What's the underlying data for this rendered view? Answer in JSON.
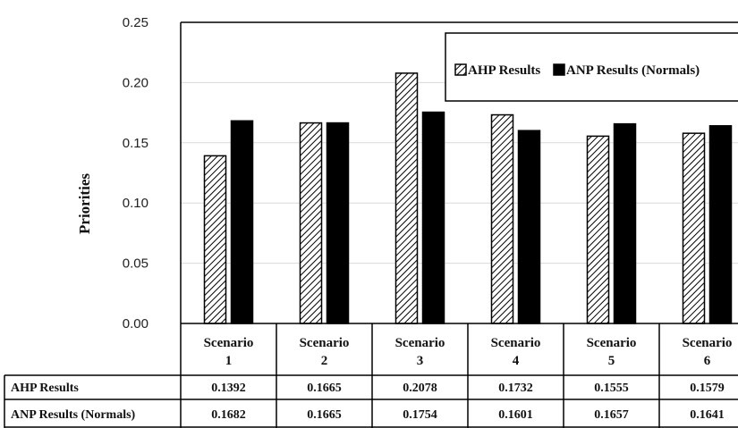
{
  "chart_data": {
    "type": "bar",
    "title": "",
    "xlabel": "",
    "ylabel": "Priorities",
    "ylim": [
      0,
      0.25
    ],
    "yticks": [
      "0.00",
      "0.05",
      "0.10",
      "0.15",
      "0.20",
      "0.25"
    ],
    "categories": [
      [
        "Scenario",
        "1"
      ],
      [
        "Scenario",
        "2"
      ],
      [
        "Scenario",
        "3"
      ],
      [
        "Scenario",
        "4"
      ],
      [
        "Scenario",
        "5"
      ],
      [
        "Scenario",
        "6"
      ]
    ],
    "grid": true,
    "legend_position": "top-right",
    "series": [
      {
        "name": "AHP Results",
        "pattern": "hatched",
        "color": "#000000",
        "values": [
          0.1392,
          0.1665,
          0.2078,
          0.1732,
          0.1555,
          0.1579
        ],
        "table_values": [
          "0.1392",
          "0.1665",
          "0.2078",
          "0.1732",
          "0.1555",
          "0.1579"
        ]
      },
      {
        "name": "ANP Results (Normals)",
        "pattern": "solid",
        "color": "#000000",
        "values": [
          0.1682,
          0.1665,
          0.1754,
          0.1601,
          0.1657,
          0.1641
        ],
        "table_values": [
          "0.1682",
          "0.1665",
          "0.1754",
          "0.1601",
          "0.1657",
          "0.1641"
        ]
      }
    ]
  }
}
